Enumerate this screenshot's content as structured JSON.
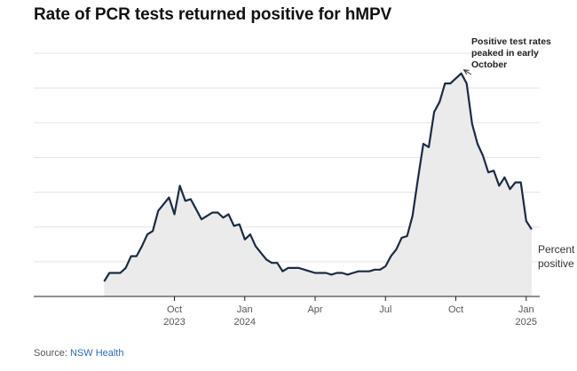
{
  "chart_data": {
    "type": "area",
    "title": "Rate of PCR tests returned positive for hMPV",
    "xlabel": "",
    "ylabel": "",
    "series_label": [
      "Percent",
      "positive"
    ],
    "x_ticks": [
      {
        "label": [
          "Oct",
          "2023"
        ],
        "at": 13.0
      },
      {
        "label": [
          "Jan",
          "2024"
        ],
        "at": 26.0
      },
      {
        "label": [
          "Apr"
        ],
        "at": 39.0
      },
      {
        "label": [
          "Jul"
        ],
        "at": 52.0
      },
      {
        "label": [
          "Oct"
        ],
        "at": 65.0
      },
      {
        "label": [
          "Jan",
          "2025"
        ],
        "at": 78.0
      }
    ],
    "xlim": [
      -13.0,
      80.5
    ],
    "grid": true,
    "gridline_count": 7,
    "annotation": {
      "lines": [
        "Positive test rates",
        "peaked in early",
        "October"
      ],
      "target_index": 66
    },
    "values": [
      0.9,
      1.4,
      1.4,
      1.4,
      1.7,
      2.4,
      2.4,
      3.0,
      3.7,
      3.9,
      5.1,
      5.5,
      5.9,
      4.9,
      6.6,
      5.7,
      5.8,
      5.2,
      4.6,
      4.8,
      5.0,
      5.0,
      4.7,
      4.9,
      4.2,
      4.3,
      3.4,
      3.7,
      3.0,
      2.6,
      2.2,
      2.0,
      2.0,
      1.5,
      1.7,
      1.7,
      1.7,
      1.6,
      1.5,
      1.4,
      1.4,
      1.4,
      1.3,
      1.4,
      1.4,
      1.3,
      1.4,
      1.5,
      1.5,
      1.5,
      1.6,
      1.6,
      1.8,
      2.4,
      2.8,
      3.5,
      3.6,
      4.8,
      7.0,
      9.1,
      8.9,
      11.0,
      11.6,
      12.7,
      12.7,
      13.0,
      13.3,
      12.7,
      10.3,
      9.1,
      8.4,
      7.4,
      7.5,
      6.6,
      7.1,
      6.4,
      6.8,
      6.8,
      4.5,
      4.0
    ],
    "ylim": [
      0,
      14.5
    ]
  },
  "source": {
    "prefix": "Source: ",
    "name": "NSW Health"
  }
}
